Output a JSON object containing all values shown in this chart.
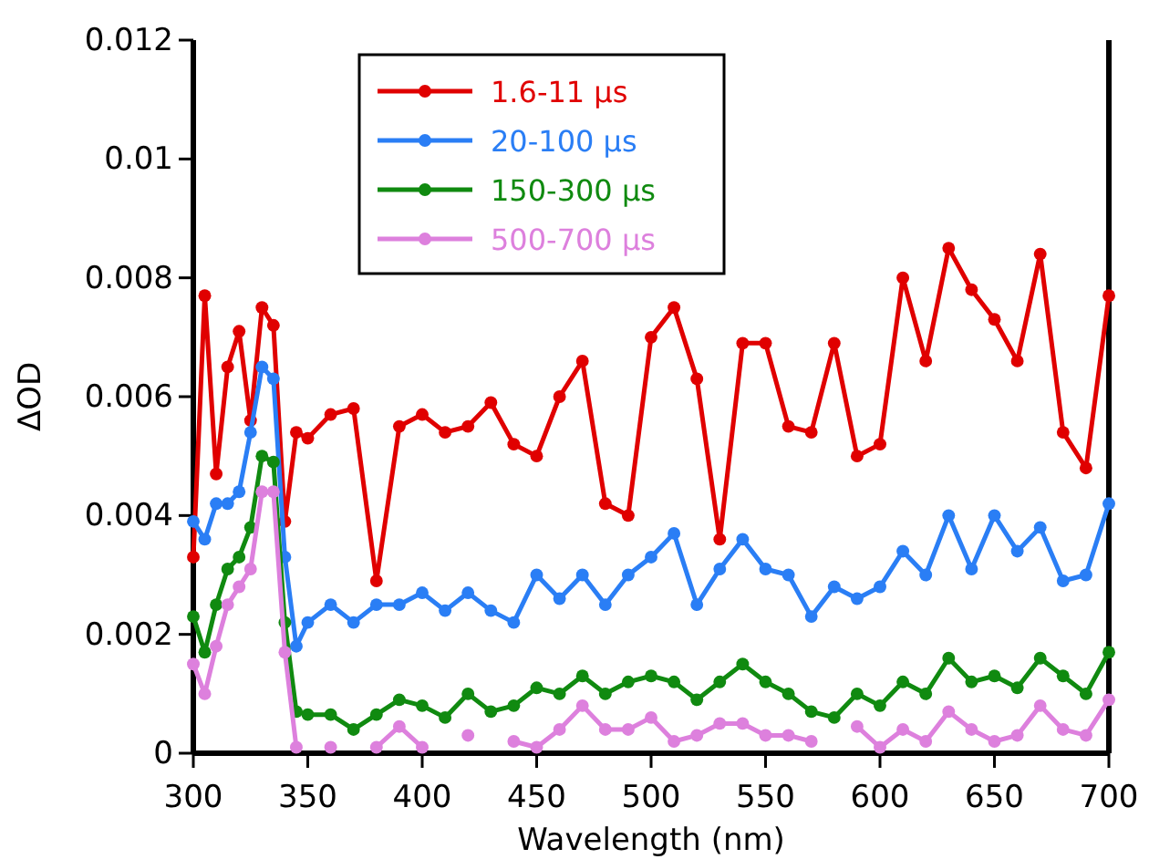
{
  "chart_data": {
    "type": "line",
    "xlabel": "Wavelength (nm)",
    "ylabel": "ΔOD",
    "x": [
      300,
      305,
      310,
      315,
      320,
      325,
      330,
      335,
      340,
      345,
      350,
      360,
      370,
      380,
      390,
      400,
      410,
      420,
      430,
      440,
      450,
      460,
      470,
      480,
      490,
      500,
      510,
      520,
      530,
      540,
      550,
      560,
      570,
      580,
      590,
      600,
      610,
      620,
      630,
      640,
      650,
      660,
      670,
      680,
      690,
      700
    ],
    "series": [
      {
        "name": "1.6-11 µs",
        "color": "#e00000",
        "values": [
          0.0033,
          0.0077,
          0.0047,
          0.0065,
          0.0071,
          0.0056,
          0.0075,
          0.0072,
          0.0039,
          0.0054,
          0.0053,
          0.0057,
          0.0058,
          0.0029,
          0.0055,
          0.0057,
          0.0054,
          0.0055,
          0.0059,
          0.0052,
          0.005,
          0.006,
          0.0066,
          0.0042,
          0.004,
          0.007,
          0.0075,
          0.0063,
          0.0036,
          0.0069,
          0.0069,
          0.0055,
          0.0054,
          0.0069,
          0.005,
          0.0052,
          0.008,
          0.0066,
          0.0085,
          0.0078,
          0.0073,
          0.0066,
          0.0084,
          0.0054,
          0.0048,
          0.0077
        ]
      },
      {
        "name": "20-100 µs",
        "color": "#2a7ef5",
        "values": [
          0.0039,
          0.0036,
          0.0042,
          0.0042,
          0.0044,
          0.0054,
          0.0065,
          0.0063,
          0.0033,
          0.0018,
          0.0022,
          0.0025,
          0.0022,
          0.0025,
          0.0025,
          0.0027,
          0.0024,
          0.0027,
          0.0024,
          0.0022,
          0.003,
          0.0026,
          0.003,
          0.0025,
          0.003,
          0.0033,
          0.0037,
          0.0025,
          0.0031,
          0.0036,
          0.0031,
          0.003,
          0.0023,
          0.0028,
          0.0026,
          0.0028,
          0.0034,
          0.003,
          0.004,
          0.0031,
          0.004,
          0.0034,
          0.0038,
          0.0029,
          0.003,
          0.0042
        ]
      },
      {
        "name": "150-300 µs",
        "color": "#108a10",
        "values": [
          0.0023,
          0.0017,
          0.0025,
          0.0031,
          0.0033,
          0.0038,
          0.005,
          0.0049,
          0.0022,
          0.0007,
          0.00065,
          0.00065,
          0.0004,
          0.00065,
          0.0009,
          0.0008,
          0.0006,
          0.001,
          0.0007,
          0.0008,
          0.0011,
          0.001,
          0.0013,
          0.001,
          0.0012,
          0.0013,
          0.0012,
          0.0009,
          0.0012,
          0.0015,
          0.0012,
          0.001,
          0.0007,
          0.0006,
          0.001,
          0.0008,
          0.0012,
          0.001,
          0.0016,
          0.0012,
          0.0013,
          0.0011,
          0.0016,
          0.0013,
          0.001,
          0.0017
        ]
      },
      {
        "name": "500-700 µs",
        "color": "#dd80dd",
        "values": [
          0.0015,
          0.001,
          0.0018,
          0.0025,
          0.0028,
          0.0031,
          0.0044,
          0.0044,
          0.0017,
          0.0001,
          null,
          0.0001,
          null,
          0.0001,
          0.00045,
          0.0001,
          null,
          0.0003,
          null,
          0.0002,
          0.0001,
          0.0004,
          0.0008,
          0.0004,
          0.0004,
          0.0006,
          0.0002,
          0.0003,
          0.0005,
          0.0005,
          0.0003,
          0.0003,
          0.0002,
          null,
          0.00045,
          0.0001,
          0.0004,
          0.0002,
          0.0007,
          0.0004,
          0.0002,
          0.0003,
          0.0008,
          0.0004,
          0.0003,
          0.0009
        ]
      }
    ],
    "xlim": [
      300,
      700
    ],
    "ylim": [
      0,
      0.012
    ],
    "xticks": [
      300,
      350,
      400,
      450,
      500,
      550,
      600,
      650,
      700
    ],
    "yticks": [
      0,
      0.002,
      0.004,
      0.006,
      0.008,
      0.01,
      0.012
    ],
    "legend": "top",
    "marker": "circle",
    "line_style": "solid",
    "grid": false
  }
}
